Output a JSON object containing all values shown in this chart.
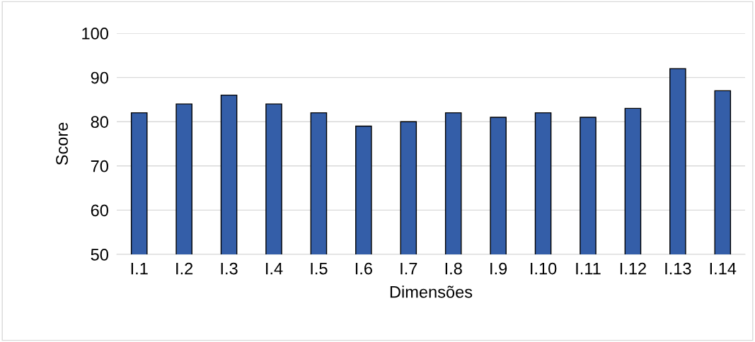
{
  "chart_data": {
    "type": "bar",
    "xlabel": "Dimensões",
    "ylabel": "Score",
    "categories": [
      "I.1",
      "I.2",
      "I.3",
      "I.4",
      "I.5",
      "I.6",
      "I.7",
      "I.8",
      "I.9",
      "I.10",
      "I.11",
      "I.12",
      "I.13",
      "I.14"
    ],
    "values": [
      82,
      84,
      86,
      84,
      82,
      79,
      80,
      82,
      81,
      82,
      81,
      83,
      92,
      87
    ],
    "color": "#345ea8",
    "ylim": [
      50,
      100
    ],
    "yticks": [
      50,
      60,
      70,
      80,
      90,
      100
    ],
    "grid": "y",
    "legend": false
  }
}
